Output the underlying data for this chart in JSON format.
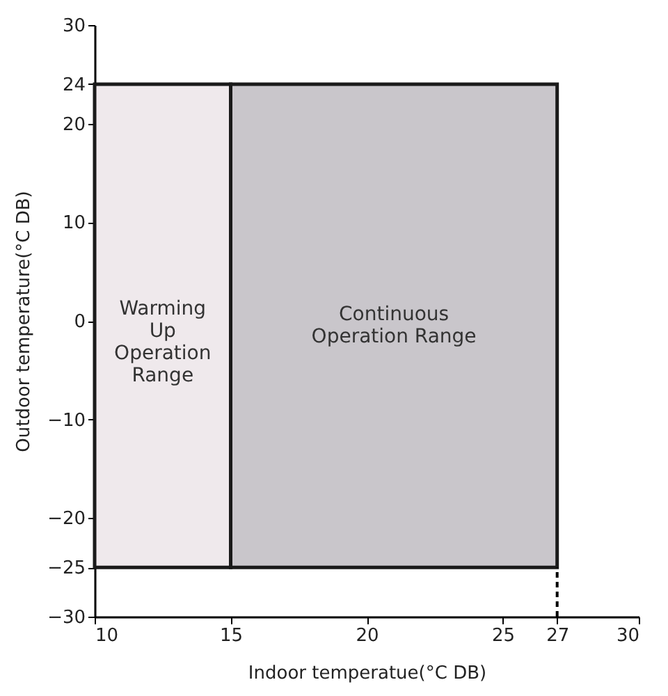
{
  "chart_data": {
    "type": "histogram",
    "xlabel": "Indoor temperatue(°C DB)",
    "ylabel": "Outdoor temperature(°C DB)",
    "bins": [
      10,
      15,
      27
    ],
    "values": [
      49,
      49
    ],
    "base": [
      -25,
      -25
    ],
    "colors": [
      "#efe9ec",
      "#c9c6cb"
    ],
    "annotations": [
      "Warming\nUp\nOperation\nRange",
      "Continuous\nOperation Range"
    ],
    "ref_lines": [
      {
        "axis": "x",
        "value": 27,
        "line_style": "dashed"
      }
    ],
    "xlim": [
      10,
      30
    ],
    "xticks": [
      10,
      15,
      20,
      25,
      27,
      30
    ],
    "ylim": [
      -30,
      30
    ],
    "yticks": [
      -30,
      -25,
      -20,
      -10,
      0,
      10,
      20,
      24,
      30
    ]
  }
}
